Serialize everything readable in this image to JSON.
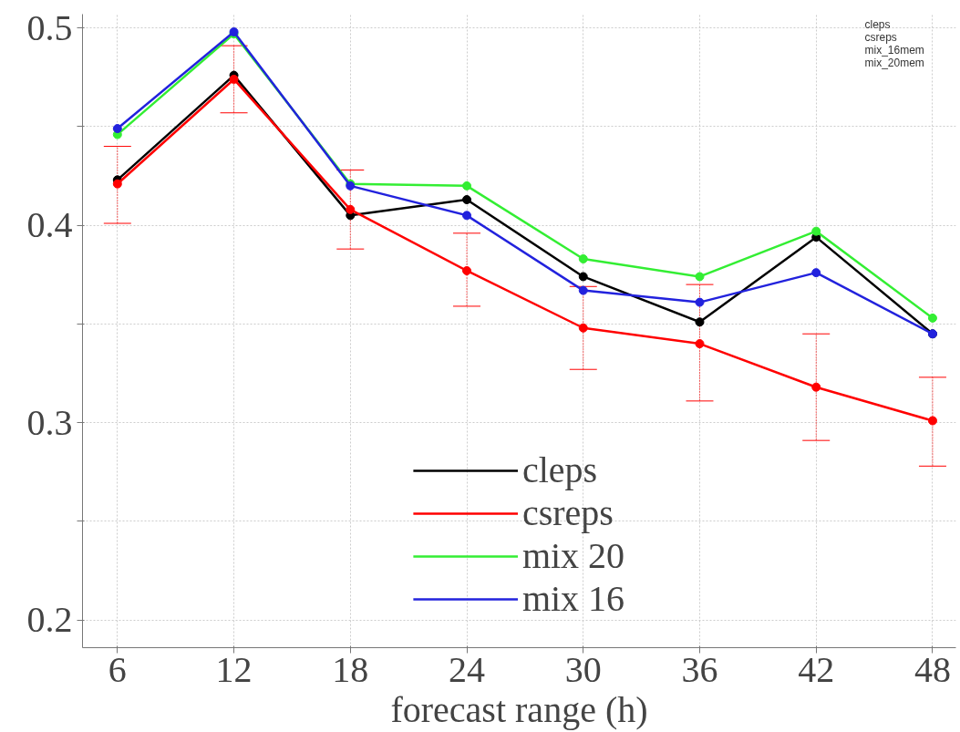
{
  "chart_data": {
    "type": "line",
    "xlabel": "forecast range (h)",
    "x": [
      6,
      12,
      18,
      24,
      30,
      36,
      42,
      48
    ],
    "xlim": [
      4.2,
      49.2
    ],
    "xticks": [
      6,
      12,
      18,
      24,
      30,
      36,
      42,
      48
    ],
    "ylim": [
      0.186,
      0.507
    ],
    "yticks": [
      0.2,
      {
        "value": 0.25,
        "label": null
      },
      0.3,
      {
        "value": 0.35,
        "label": null
      },
      0.4,
      {
        "value": 0.45,
        "label": null
      },
      0.5
    ],
    "grid": true,
    "legend": "bottom",
    "marker": "circle",
    "line_style": "solid",
    "series": [
      {
        "name": "cleps",
        "color": "#000000",
        "values": [
          0.423,
          0.476,
          0.405,
          0.413,
          0.374,
          0.351,
          0.394,
          0.345
        ]
      },
      {
        "name": "csreps",
        "color": "#ff0000",
        "values": [
          0.421,
          0.474,
          0.408,
          0.377,
          0.348,
          0.34,
          0.318,
          0.301
        ],
        "errors": [
          [
            0.401,
            0.44
          ],
          [
            0.457,
            0.491
          ],
          [
            0.388,
            0.428
          ],
          [
            0.359,
            0.396
          ],
          [
            0.327,
            0.369
          ],
          [
            0.311,
            0.37
          ],
          [
            0.291,
            0.345
          ],
          [
            0.278,
            0.323
          ]
        ]
      },
      {
        "name": "mix 20",
        "color": "#33ee33",
        "values": [
          0.446,
          0.497,
          0.421,
          0.42,
          0.383,
          0.374,
          0.397,
          0.353
        ]
      },
      {
        "name": "mix 16",
        "color": "#2222dd",
        "values": [
          0.449,
          0.498,
          0.42,
          0.405,
          0.367,
          0.361,
          0.376,
          0.345
        ]
      }
    ],
    "annotations": [
      "cleps",
      "csreps",
      "mix_16mem",
      "mix_20mem"
    ]
  }
}
